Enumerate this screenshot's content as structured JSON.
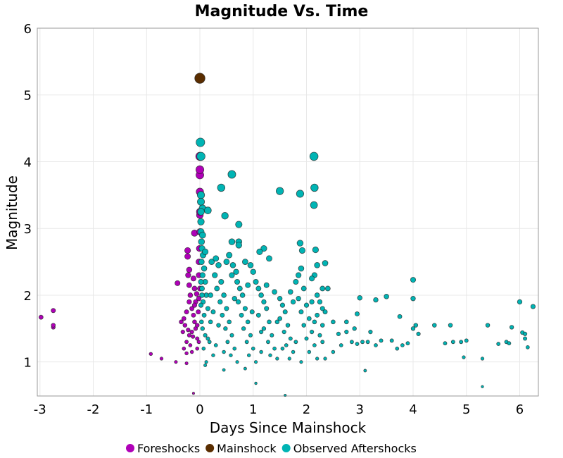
{
  "chart_data": {
    "type": "scatter",
    "title": "Magnitude Vs. Time",
    "xlabel": "Days Since Mainshock",
    "ylabel": "Magnitude",
    "xlim": [
      -3.05,
      6.35
    ],
    "ylim": [
      0.49,
      6
    ],
    "xticks": [
      -3,
      -2,
      -1,
      0,
      1,
      2,
      3,
      4,
      5,
      6
    ],
    "yticks": [
      1,
      2,
      3,
      4,
      5,
      6
    ],
    "grid": true,
    "legend_placement": "bottom",
    "series": [
      {
        "name": "Foreshocks",
        "color": "#b000b8",
        "points": [
          [
            -2.98,
            1.67
          ],
          [
            -2.75,
            1.77
          ],
          [
            -2.75,
            1.52
          ],
          [
            -2.75,
            1.55
          ],
          [
            -0.92,
            1.12
          ],
          [
            -0.72,
            1.05
          ],
          [
            -0.42,
            2.18
          ],
          [
            -0.45,
            1.0
          ],
          [
            -0.25,
            0.98
          ],
          [
            -0.12,
            0.53
          ],
          [
            -0.25,
            1.13
          ],
          [
            -0.1,
            2.93
          ],
          [
            -0.23,
            2.67
          ],
          [
            -0.23,
            2.58
          ],
          [
            -0.2,
            2.38
          ],
          [
            -0.22,
            2.3
          ],
          [
            -0.2,
            2.15
          ],
          [
            -0.18,
            2.0
          ],
          [
            -0.2,
            1.9
          ],
          [
            -0.25,
            1.75
          ],
          [
            -0.3,
            1.65
          ],
          [
            -0.28,
            1.55
          ],
          [
            -0.15,
            1.8
          ],
          [
            -0.12,
            1.7
          ],
          [
            -0.1,
            1.6
          ],
          [
            -0.08,
            1.5
          ],
          [
            -0.15,
            1.45
          ],
          [
            -0.2,
            1.4
          ],
          [
            -0.25,
            1.3
          ],
          [
            -0.18,
            1.25
          ],
          [
            -0.05,
            1.35
          ],
          [
            -0.05,
            1.55
          ],
          [
            -0.03,
            1.75
          ],
          [
            -0.02,
            1.95
          ],
          [
            0,
            2.1
          ],
          [
            -0.02,
            2.3
          ],
          [
            -0.02,
            2.5
          ],
          [
            -0.01,
            2.7
          ],
          [
            0,
            2.95
          ],
          [
            0,
            3.2
          ],
          [
            0,
            3.25
          ],
          [
            0,
            3.55
          ],
          [
            0,
            3.8
          ],
          [
            0,
            3.88
          ],
          [
            0,
            4.08
          ],
          [
            -0.1,
            2.1
          ],
          [
            -0.12,
            2.25
          ],
          [
            -0.08,
            1.9
          ],
          [
            -0.3,
            1.2
          ],
          [
            -0.32,
            1.45
          ],
          [
            -0.35,
            1.6
          ],
          [
            -0.05,
            1.2
          ],
          [
            -0.02,
            1.3
          ],
          [
            -0.15,
            1.15
          ],
          [
            -0.1,
            1.85
          ],
          [
            -0.06,
            2.02
          ],
          [
            -0.13,
            1.38
          ],
          [
            -0.22,
            1.48
          ]
        ]
      },
      {
        "name": "Observed Aftershocks",
        "color": "#00b4b4",
        "points": [
          [
            0.01,
            4.29
          ],
          [
            0.02,
            4.08
          ],
          [
            2.14,
            4.08
          ],
          [
            0.6,
            3.81
          ],
          [
            0.4,
            3.61
          ],
          [
            2.15,
            3.61
          ],
          [
            1.5,
            3.56
          ],
          [
            1.88,
            3.52
          ],
          [
            2.14,
            3.35
          ],
          [
            0.02,
            3.5
          ],
          [
            0.02,
            3.4
          ],
          [
            0.05,
            3.3
          ],
          [
            0.15,
            3.27
          ],
          [
            0.02,
            3.25
          ],
          [
            0.47,
            3.19
          ],
          [
            0.02,
            3.1
          ],
          [
            0.73,
            3.06
          ],
          [
            0.02,
            2.95
          ],
          [
            0.05,
            2.9
          ],
          [
            0.73,
            2.8
          ],
          [
            0.6,
            2.8
          ],
          [
            0.73,
            2.75
          ],
          [
            1.2,
            2.7
          ],
          [
            1.12,
            2.65
          ],
          [
            1.88,
            2.78
          ],
          [
            1.92,
            2.67
          ],
          [
            2.17,
            2.68
          ],
          [
            2.35,
            2.48
          ],
          [
            2.2,
            2.45
          ],
          [
            2.15,
            2.3
          ],
          [
            2.3,
            2.1
          ],
          [
            2.4,
            2.1
          ],
          [
            3.0,
            1.96
          ],
          [
            3.5,
            1.98
          ],
          [
            4.0,
            2.23
          ],
          [
            4.0,
            1.95
          ],
          [
            3.3,
            1.93
          ],
          [
            3.75,
            1.68
          ],
          [
            4.05,
            1.55
          ],
          [
            4.4,
            1.55
          ],
          [
            4.7,
            1.55
          ],
          [
            5.0,
            1.32
          ],
          [
            4.9,
            1.3
          ],
          [
            4.75,
            1.3
          ],
          [
            4.6,
            1.28
          ],
          [
            5.4,
            1.55
          ],
          [
            5.6,
            1.27
          ],
          [
            5.75,
            1.3
          ],
          [
            5.8,
            1.28
          ],
          [
            5.85,
            1.52
          ],
          [
            6.0,
            1.9
          ],
          [
            6.05,
            1.44
          ],
          [
            6.1,
            1.42
          ],
          [
            6.15,
            1.22
          ],
          [
            6.25,
            1.83
          ],
          [
            6.1,
            1.35
          ],
          [
            5.3,
            0.63
          ],
          [
            4.95,
            1.07
          ],
          [
            5.3,
            1.05
          ],
          [
            3.1,
            0.87
          ],
          [
            1.6,
            0.5
          ],
          [
            1.05,
            0.68
          ],
          [
            0.45,
            0.88
          ],
          [
            0.1,
            0.95
          ],
          [
            3.7,
            1.2
          ],
          [
            3.6,
            1.32
          ],
          [
            3.9,
            1.28
          ],
          [
            4.1,
            1.42
          ],
          [
            4.0,
            1.5
          ],
          [
            3.8,
            1.25
          ],
          [
            3.2,
            1.45
          ],
          [
            3.15,
            1.3
          ],
          [
            3.05,
            1.3
          ],
          [
            2.95,
            1.27
          ],
          [
            2.9,
            1.5
          ],
          [
            2.95,
            1.72
          ],
          [
            2.75,
            1.6
          ],
          [
            2.6,
            1.42
          ],
          [
            2.75,
            1.45
          ],
          [
            2.85,
            1.3
          ],
          [
            3.4,
            1.32
          ],
          [
            3.3,
            1.25
          ],
          [
            2.65,
            1.25
          ],
          [
            2.5,
            1.15
          ],
          [
            2.35,
            1.05
          ],
          [
            2.5,
            1.6
          ],
          [
            0.03,
            2.8
          ],
          [
            0.04,
            2.7
          ],
          [
            0.06,
            2.6
          ],
          [
            0.03,
            2.5
          ],
          [
            0.08,
            2.4
          ],
          [
            0.05,
            2.3
          ],
          [
            0.1,
            2.2
          ],
          [
            0.04,
            2.1
          ],
          [
            0.12,
            2.0
          ],
          [
            0.06,
            1.9
          ],
          [
            0.15,
            1.8
          ],
          [
            0.08,
            1.7
          ],
          [
            0.2,
            1.6
          ],
          [
            0.05,
            1.5
          ],
          [
            0.1,
            1.4
          ],
          [
            0.18,
            1.3
          ],
          [
            0.07,
            1.2
          ],
          [
            0.25,
            1.1
          ],
          [
            0.12,
            1.0
          ],
          [
            0.22,
            2.5
          ],
          [
            0.3,
            2.55
          ],
          [
            0.35,
            2.45
          ],
          [
            0.28,
            2.3
          ],
          [
            0.4,
            2.2
          ],
          [
            0.32,
            2.1
          ],
          [
            0.45,
            2.0
          ],
          [
            0.38,
            1.9
          ],
          [
            0.5,
            1.8
          ],
          [
            0.42,
            1.7
          ],
          [
            0.55,
            1.6
          ],
          [
            0.48,
            1.5
          ],
          [
            0.6,
            1.4
          ],
          [
            0.52,
            1.3
          ],
          [
            0.65,
            1.2
          ],
          [
            0.58,
            1.1
          ],
          [
            0.5,
            2.5
          ],
          [
            0.55,
            2.6
          ],
          [
            0.62,
            2.45
          ],
          [
            0.68,
            2.35
          ],
          [
            0.7,
            2.2
          ],
          [
            0.75,
            2.1
          ],
          [
            0.8,
            2.0
          ],
          [
            0.72,
            1.9
          ],
          [
            0.85,
            1.8
          ],
          [
            0.78,
            1.7
          ],
          [
            0.9,
            1.6
          ],
          [
            0.82,
            1.5
          ],
          [
            0.95,
            1.4
          ],
          [
            0.88,
            1.3
          ],
          [
            1.0,
            1.2
          ],
          [
            0.92,
            1.1
          ],
          [
            1.05,
            1.0
          ],
          [
            0.85,
            2.5
          ],
          [
            0.95,
            2.45
          ],
          [
            1.0,
            2.35
          ],
          [
            1.05,
            2.2
          ],
          [
            1.1,
            2.1
          ],
          [
            1.15,
            2.0
          ],
          [
            1.2,
            1.9
          ],
          [
            1.25,
            1.8
          ],
          [
            1.1,
            1.7
          ],
          [
            1.3,
            1.6
          ],
          [
            1.2,
            1.5
          ],
          [
            1.35,
            1.4
          ],
          [
            1.28,
            1.3
          ],
          [
            1.4,
            1.2
          ],
          [
            1.32,
            1.1
          ],
          [
            1.45,
            1.05
          ],
          [
            1.25,
            2.15
          ],
          [
            1.4,
            2.05
          ],
          [
            1.5,
            1.95
          ],
          [
            1.55,
            1.85
          ],
          [
            1.6,
            1.75
          ],
          [
            1.5,
            1.65
          ],
          [
            1.65,
            1.55
          ],
          [
            1.58,
            1.45
          ],
          [
            1.7,
            1.35
          ],
          [
            1.62,
            1.25
          ],
          [
            1.75,
            1.15
          ],
          [
            1.68,
            1.05
          ],
          [
            1.8,
            2.2
          ],
          [
            1.85,
            2.3
          ],
          [
            1.9,
            2.4
          ],
          [
            1.95,
            2.1
          ],
          [
            1.85,
            1.95
          ],
          [
            2.0,
            1.85
          ],
          [
            1.9,
            1.75
          ],
          [
            2.05,
            1.65
          ],
          [
            1.95,
            1.55
          ],
          [
            2.1,
            1.45
          ],
          [
            2.0,
            1.35
          ],
          [
            2.15,
            1.25
          ],
          [
            2.05,
            1.15
          ],
          [
            2.2,
            1.05
          ],
          [
            1.9,
            1.0
          ],
          [
            2.1,
            2.25
          ],
          [
            2.2,
            2.0
          ],
          [
            2.25,
            1.9
          ],
          [
            2.3,
            1.8
          ],
          [
            2.2,
            1.7
          ],
          [
            2.3,
            1.55
          ],
          [
            2.25,
            1.4
          ],
          [
            2.3,
            1.3
          ],
          [
            2.15,
            1.6
          ],
          [
            2.1,
            1.9
          ],
          [
            1.75,
            1.9
          ],
          [
            1.45,
            1.6
          ],
          [
            1.15,
            1.45
          ],
          [
            0.98,
            1.75
          ],
          [
            0.65,
            1.95
          ],
          [
            0.35,
            1.55
          ],
          [
            0.15,
            1.35
          ],
          [
            0.03,
            1.6
          ],
          [
            0.02,
            1.85
          ],
          [
            0.04,
            2.0
          ],
          [
            0.02,
            2.2
          ],
          [
            0.1,
            2.65
          ],
          [
            0.3,
            1.25
          ],
          [
            0.45,
            1.15
          ],
          [
            0.7,
            1.0
          ],
          [
            0.85,
            0.9
          ],
          [
            1.15,
            1.15
          ],
          [
            1.55,
            1.2
          ],
          [
            1.8,
            1.3
          ],
          [
            1.3,
            2.55
          ],
          [
            0.2,
            2.0
          ],
          [
            0.25,
            1.75
          ],
          [
            0.6,
            2.3
          ],
          [
            0.9,
            2.15
          ],
          [
            1.7,
            2.05
          ],
          [
            2.35,
            1.75
          ]
        ]
      },
      {
        "name": "Mainshock",
        "color": "#5a2d00",
        "points": [
          [
            0,
            5.25
          ]
        ]
      }
    ],
    "legend": [
      "Foreshocks",
      "Mainshock",
      "Observed Aftershocks"
    ]
  }
}
